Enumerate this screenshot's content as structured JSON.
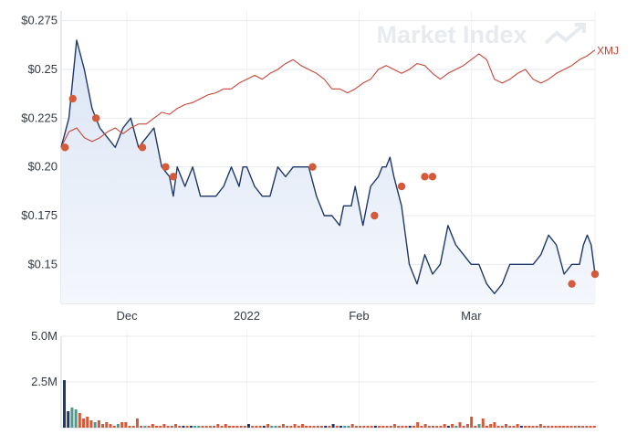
{
  "watermark": "Market Index",
  "chart_data": [
    {
      "type": "line",
      "subtype": "price-area-with-comparison",
      "y_ticks": [
        "$0.275",
        "$0.25",
        "$0.225",
        "$0.20",
        "$0.175",
        "$0.15"
      ],
      "y_tick_values": [
        0.275,
        0.25,
        0.225,
        0.2,
        0.175,
        0.15
      ],
      "ylim": [
        0.13,
        0.28
      ],
      "x_ticks": [
        "Dec",
        "2022",
        "Feb",
        "Mar"
      ],
      "x_tick_positions": [
        17,
        48,
        77,
        106
      ],
      "xlim": [
        0,
        138
      ],
      "grid": true,
      "series": [
        {
          "name": "",
          "color": "#1f3868",
          "fill": "#dbe5f5",
          "x": [
            0,
            2,
            4,
            6,
            8,
            10,
            12,
            14,
            16,
            18,
            20,
            22,
            24,
            26,
            28,
            29,
            30,
            31,
            32,
            34,
            36,
            38,
            40,
            42,
            44,
            46,
            47,
            48,
            50,
            52,
            54,
            56,
            58,
            60,
            62,
            64,
            66,
            68,
            70,
            72,
            73,
            74,
            75,
            76,
            78,
            80,
            82,
            83,
            84,
            85,
            86,
            88,
            90,
            92,
            94,
            96,
            98,
            100,
            102,
            104,
            106,
            108,
            110,
            112,
            114,
            116,
            118,
            120,
            122,
            124,
            126,
            128,
            130,
            132,
            134,
            135,
            136,
            137,
            138
          ],
          "y": [
            0.21,
            0.225,
            0.265,
            0.25,
            0.23,
            0.22,
            0.215,
            0.21,
            0.22,
            0.225,
            0.21,
            0.215,
            0.22,
            0.2,
            0.195,
            0.185,
            0.2,
            0.195,
            0.19,
            0.2,
            0.185,
            0.185,
            0.185,
            0.19,
            0.2,
            0.19,
            0.2,
            0.2,
            0.19,
            0.185,
            0.185,
            0.2,
            0.195,
            0.2,
            0.2,
            0.2,
            0.185,
            0.175,
            0.175,
            0.17,
            0.18,
            0.18,
            0.18,
            0.19,
            0.17,
            0.19,
            0.195,
            0.2,
            0.2,
            0.205,
            0.195,
            0.18,
            0.15,
            0.14,
            0.155,
            0.145,
            0.15,
            0.17,
            0.16,
            0.155,
            0.15,
            0.15,
            0.14,
            0.135,
            0.14,
            0.15,
            0.15,
            0.15,
            0.15,
            0.155,
            0.165,
            0.16,
            0.145,
            0.15,
            0.15,
            0.16,
            0.165,
            0.16,
            0.145
          ]
        },
        {
          "name": "XMJ",
          "color": "#c8473a",
          "x": [
            0,
            2,
            4,
            6,
            8,
            10,
            12,
            14,
            16,
            18,
            20,
            22,
            24,
            26,
            28,
            30,
            32,
            34,
            36,
            38,
            40,
            42,
            44,
            46,
            48,
            50,
            52,
            54,
            56,
            58,
            60,
            62,
            64,
            66,
            68,
            70,
            72,
            74,
            76,
            78,
            80,
            82,
            84,
            86,
            88,
            90,
            92,
            94,
            96,
            98,
            100,
            102,
            104,
            106,
            108,
            110,
            112,
            114,
            116,
            118,
            120,
            122,
            124,
            126,
            128,
            130,
            132,
            134,
            136,
            138
          ],
          "y": [
            0.21,
            0.218,
            0.22,
            0.215,
            0.213,
            0.215,
            0.218,
            0.22,
            0.217,
            0.22,
            0.222,
            0.222,
            0.225,
            0.228,
            0.227,
            0.23,
            0.232,
            0.233,
            0.235,
            0.237,
            0.238,
            0.24,
            0.24,
            0.243,
            0.245,
            0.247,
            0.245,
            0.248,
            0.25,
            0.253,
            0.255,
            0.252,
            0.25,
            0.248,
            0.245,
            0.24,
            0.24,
            0.238,
            0.24,
            0.243,
            0.245,
            0.25,
            0.252,
            0.25,
            0.248,
            0.25,
            0.253,
            0.252,
            0.248,
            0.245,
            0.248,
            0.25,
            0.252,
            0.255,
            0.258,
            0.255,
            0.245,
            0.243,
            0.245,
            0.248,
            0.25,
            0.245,
            0.243,
            0.245,
            0.248,
            0.25,
            0.252,
            0.255,
            0.257,
            0.26
          ]
        }
      ],
      "events": {
        "color": "#d35a3a",
        "x": [
          1,
          3,
          9,
          21,
          27,
          29,
          65,
          81,
          88,
          94,
          96,
          132,
          138
        ],
        "y": [
          0.21,
          0.235,
          0.225,
          0.21,
          0.2,
          0.195,
          0.2,
          0.175,
          0.19,
          0.195,
          0.195,
          0.14,
          0.145
        ]
      }
    },
    {
      "type": "bar",
      "subtype": "volume",
      "y_ticks": [
        "5.0M",
        "2.5M"
      ],
      "y_tick_values": [
        5000000,
        2500000
      ],
      "ylim": [
        0,
        5000000
      ],
      "colors": {
        "navy": "#1f3868",
        "green": "#4f9a8c",
        "red": "#d35a3a"
      },
      "values": [
        2600000,
        900000,
        1100000,
        1000000,
        800000,
        500000,
        600000,
        400000,
        300000,
        400000,
        200000,
        300000,
        200000,
        100000,
        200000,
        300000,
        300000,
        100000,
        100000,
        500000,
        100000,
        100000,
        100000,
        200000,
        100000,
        100000,
        200000,
        100000,
        100000,
        200000,
        100000,
        100000,
        100000,
        100000,
        100000,
        100000,
        100000,
        100000,
        100000,
        100000,
        200000,
        100000,
        200000,
        100000,
        100000,
        100000,
        100000,
        100000,
        200000,
        100000,
        100000,
        100000,
        100000,
        200000,
        100000,
        100000,
        100000,
        200000,
        100000,
        100000,
        200000,
        100000,
        200000,
        100000,
        100000,
        100000,
        100000,
        100000,
        100000,
        100000,
        200000,
        100000,
        100000,
        100000,
        100000,
        200000,
        100000,
        100000,
        100000,
        100000,
        100000,
        100000,
        100000,
        100000,
        100000,
        100000,
        200000,
        100000,
        100000,
        100000,
        100000,
        100000,
        300000,
        100000,
        200000,
        100000,
        100000,
        100000,
        100000,
        200000,
        100000,
        200000,
        100000,
        300000,
        100000,
        200000,
        600000,
        100000,
        200000,
        500000,
        100000,
        200000,
        300000,
        100000,
        100000,
        200000,
        100000,
        100000,
        200000,
        100000,
        100000,
        100000,
        100000,
        100000,
        200000,
        100000,
        100000,
        100000,
        100000,
        100000,
        100000,
        100000,
        100000,
        100000,
        100000,
        100000,
        100000,
        100000,
        100000
      ],
      "colors_seq": [
        "navy",
        "navy",
        "green",
        "green",
        "red",
        "red",
        "red",
        "red",
        "green",
        "red",
        "red",
        "red",
        "red",
        "red",
        "green",
        "red",
        "red",
        "red",
        "red",
        "red",
        "red",
        "green",
        "red",
        "red",
        "red",
        "red",
        "red",
        "red",
        "red",
        "red",
        "red",
        "navy",
        "red",
        "navy",
        "green",
        "green",
        "red",
        "red",
        "red",
        "red",
        "red",
        "red",
        "red",
        "red",
        "red",
        "red",
        "red",
        "red",
        "navy",
        "red",
        "red",
        "red",
        "navy",
        "red",
        "green",
        "green",
        "red",
        "red",
        "red",
        "red",
        "red",
        "red",
        "red",
        "red",
        "red",
        "red",
        "red",
        "red",
        "navy",
        "red",
        "navy",
        "red",
        "navy",
        "green",
        "green",
        "red",
        "red",
        "red",
        "red",
        "red",
        "red",
        "navy",
        "red",
        "red",
        "red",
        "red",
        "red",
        "red",
        "red",
        "red",
        "navy",
        "red",
        "red",
        "red",
        "red",
        "red",
        "red",
        "red",
        "red",
        "red",
        "navy",
        "red",
        "green",
        "red",
        "red",
        "red",
        "red",
        "red",
        "green",
        "red",
        "red",
        "red",
        "red",
        "red",
        "red",
        "red",
        "red",
        "red",
        "red",
        "navy",
        "red",
        "red",
        "red",
        "red",
        "red",
        "red",
        "red",
        "red",
        "red",
        "red",
        "red",
        "red",
        "red",
        "red",
        "red",
        "red",
        "red"
      ]
    }
  ]
}
